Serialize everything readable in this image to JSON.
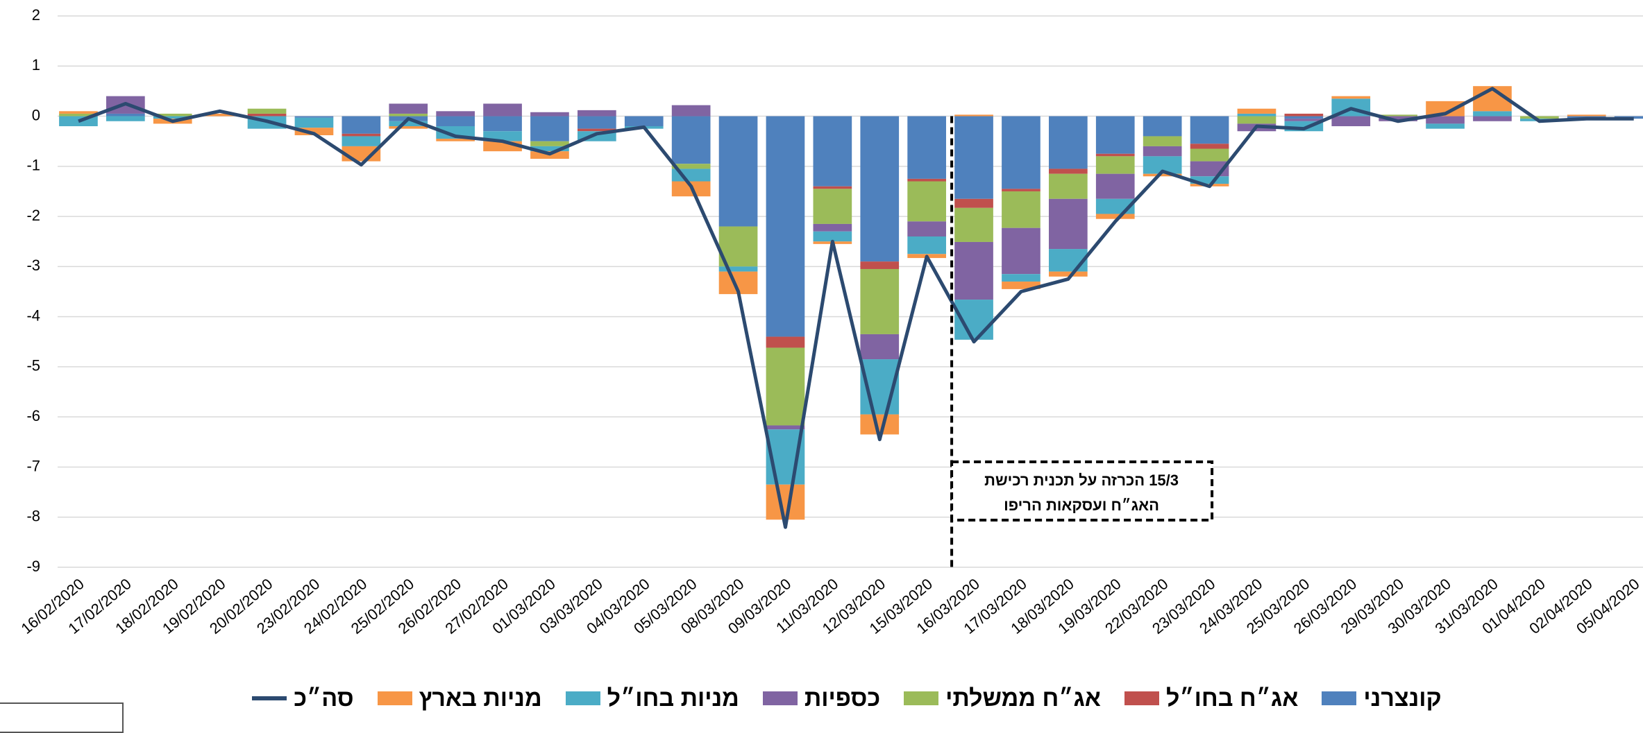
{
  "chart_data": {
    "type": "stacked-bar-line",
    "categories": [
      "16/02/2020",
      "17/02/2020",
      "18/02/2020",
      "19/02/2020",
      "20/02/2020",
      "23/02/2020",
      "24/02/2020",
      "25/02/2020",
      "26/02/2020",
      "27/02/2020",
      "01/03/2020",
      "03/03/2020",
      "04/03/2020",
      "05/03/2020",
      "08/03/2020",
      "09/03/2020",
      "11/03/2020",
      "12/03/2020",
      "15/03/2020",
      "16/03/2020",
      "17/03/2020",
      "18/03/2020",
      "19/03/2020",
      "22/03/2020",
      "23/03/2020",
      "24/03/2020",
      "25/03/2020",
      "26/03/2020",
      "29/03/2020",
      "30/03/2020",
      "31/03/2020",
      "01/04/2020",
      "02/04/2020",
      "05/04/2020"
    ],
    "series": [
      {
        "name": "קונצרני",
        "color": "#4f81bd",
        "values": [
          0,
          0.05,
          0,
          0,
          0,
          -0.03,
          -0.35,
          -0.1,
          -0.2,
          -0.3,
          -0.5,
          -0.25,
          -0.2,
          -0.95,
          -2.2,
          -4.4,
          -1.4,
          -2.9,
          -1.25,
          -1.65,
          -1.45,
          -1.05,
          -0.75,
          -0.4,
          -0.55,
          0,
          -0.05,
          0,
          0,
          0,
          0,
          0,
          -0.05,
          -0.05
        ]
      },
      {
        "name": "אג״ח בחו״ל",
        "color": "#c0504d",
        "values": [
          0,
          0,
          0,
          0,
          0.05,
          0,
          -0.05,
          0,
          0,
          0,
          0,
          -0.05,
          0,
          0,
          0,
          -0.22,
          -0.05,
          -0.15,
          -0.05,
          -0.18,
          -0.05,
          -0.1,
          -0.05,
          0,
          -0.1,
          0,
          0.05,
          0,
          0,
          0,
          0,
          0,
          0,
          0
        ]
      },
      {
        "name": "אג״ח ממשלתי",
        "color": "#9bbb59",
        "values": [
          0.05,
          0,
          0.05,
          0,
          0.1,
          0,
          0,
          0.05,
          0,
          0,
          -0.1,
          0,
          0,
          -0.1,
          -0.8,
          -1.55,
          -0.7,
          -1.3,
          -0.8,
          -0.68,
          -0.73,
          -0.5,
          -0.35,
          -0.2,
          -0.25,
          -0.15,
          0,
          0,
          0.03,
          0,
          0,
          -0.05,
          0,
          0
        ]
      },
      {
        "name": "כספיות",
        "color": "#8064a2",
        "values": [
          0,
          0.35,
          0,
          0,
          0,
          0,
          0,
          0.2,
          0.1,
          0.25,
          0.08,
          0.12,
          0,
          0.22,
          0,
          -0.08,
          -0.15,
          -0.5,
          -0.3,
          -1.15,
          -0.92,
          -1.0,
          -0.5,
          -0.2,
          -0.3,
          -0.15,
          -0.05,
          -0.2,
          -0.1,
          -0.15,
          -0.1,
          0,
          0,
          0
        ]
      },
      {
        "name": "מניות בחו״ל",
        "color": "#4bacc6",
        "values": [
          -0.2,
          -0.1,
          -0.05,
          0,
          -0.25,
          -0.2,
          -0.2,
          -0.1,
          -0.25,
          -0.2,
          -0.1,
          -0.2,
          -0.05,
          -0.25,
          -0.1,
          -1.1,
          -0.2,
          -1.1,
          -0.35,
          -0.8,
          -0.15,
          -0.45,
          -0.3,
          -0.35,
          -0.15,
          0.05,
          -0.2,
          0.35,
          0,
          -0.1,
          0.1,
          -0.05,
          0,
          0
        ]
      },
      {
        "name": "מניות בארץ",
        "color": "#f79646",
        "values": [
          0.05,
          0,
          -0.1,
          0.05,
          0,
          -0.15,
          -0.3,
          -0.05,
          -0.05,
          -0.2,
          -0.15,
          0,
          0,
          -0.3,
          -0.45,
          -0.7,
          -0.05,
          -0.4,
          -0.08,
          0.03,
          -0.15,
          -0.1,
          -0.1,
          -0.05,
          -0.05,
          0.1,
          0,
          0.05,
          0,
          0.3,
          0.5,
          0,
          0.03,
          0
        ]
      },
      {
        "name": "סה״כ",
        "color": "#2c4a70",
        "kind": "line",
        "values": [
          -0.1,
          0.25,
          -0.1,
          0.1,
          -0.1,
          -0.35,
          -0.97,
          -0.05,
          -0.4,
          -0.5,
          -0.75,
          -0.35,
          -0.22,
          -1.4,
          -3.5,
          -8.2,
          -2.5,
          -6.45,
          -2.8,
          -4.5,
          -3.5,
          -3.25,
          -2.1,
          -1.1,
          -1.4,
          -0.2,
          -0.25,
          0.15,
          -0.1,
          0.05,
          0.55,
          -0.1,
          -0.05,
          -0.05
        ]
      }
    ],
    "ylim": [
      -9,
      2
    ],
    "yticks": [
      -9,
      -8,
      -7,
      -6,
      -5,
      -4,
      -3,
      -2,
      -1,
      0,
      1,
      2
    ],
    "grid": true,
    "annotation": {
      "category": "16/03/2020",
      "lines": [
        "15/3  הכרזה על תכנית רכישת",
        "האג״ח ועסקאות הריפו"
      ]
    },
    "legend": "bottom"
  }
}
